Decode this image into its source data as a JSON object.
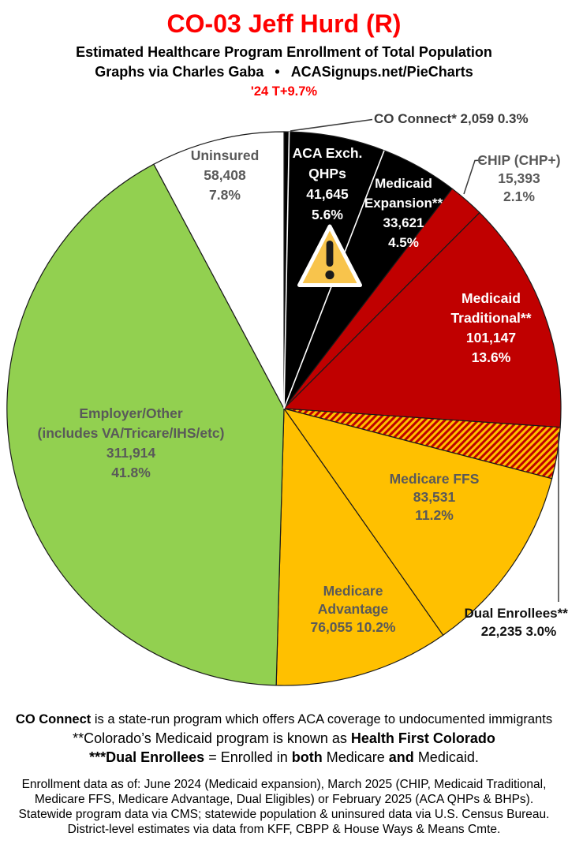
{
  "header": {
    "title": "CO-03 Jeff Hurd (R)",
    "title_color": "#FE0000",
    "subtitle": "Estimated Healthcare Program Enrollment of Total Population",
    "credit": "Graphs via Charles Gaba",
    "bullet": "•",
    "site": "ACASignups.net/PieCharts",
    "trend": "'24 T+9.7%",
    "trend_color": "#FE0000"
  },
  "chart_data": {
    "type": "pie",
    "title": "CO-03 Jeff Hurd (R) — Estimated Healthcare Program Enrollment of Total Population",
    "start_at_12_oclock_clockwise": true,
    "slice_border_color": "#1a1a1a",
    "divider_highlight_color": "#ffffff",
    "hatch": {
      "base": "#FFC000",
      "stripe": "#C00000"
    },
    "icon": {
      "name": "warning-triangle",
      "fill": "#F8C44C",
      "mark_color": "#1b1b1b",
      "border_color": "#ffffff"
    },
    "segments": [
      {
        "id": "co-connect",
        "label": "CO Connect*",
        "value": 2059,
        "pct": 0.3,
        "fill": "#000000",
        "label_color": "#3b3b3b",
        "lines": [
          "CO Connect* 2,059 0.3%"
        ]
      },
      {
        "id": "aca-exchange-qhps",
        "label": "ACA Exch. QHPs",
        "value": 41645,
        "pct": 5.6,
        "fill": "#000000",
        "label_color": "#ffffff",
        "white_start_divider": true,
        "lines": [
          "ACA Exch.",
          "QHPs",
          "41,645",
          "5.6%"
        ]
      },
      {
        "id": "medicaid-expansion",
        "label": "Medicaid Expansion**",
        "value": 33621,
        "pct": 4.5,
        "fill": "#000000",
        "label_color": "#ffffff",
        "white_start_divider": true,
        "lines": [
          "Medicaid",
          "Expansion**",
          "33,621",
          "4.5%"
        ]
      },
      {
        "id": "chip",
        "label": "CHIP (CHP+)",
        "value": 15393,
        "pct": 2.1,
        "fill": "#C00000",
        "label_color": "#595959",
        "lines": [
          "CHIP (CHP+)",
          "15,393",
          "2.1%"
        ]
      },
      {
        "id": "medicaid-traditional",
        "label": "Medicaid Traditional**",
        "value": 101147,
        "pct": 13.6,
        "fill": "#C00000",
        "label_color": "#ffffff",
        "lines": [
          "Medicaid",
          "Traditional**",
          "101,147",
          "13.6%"
        ]
      },
      {
        "id": "dual-enrollees",
        "label": "Dual Enrollees***",
        "value": 22235,
        "pct": 3.0,
        "fill": "hatch",
        "label_color": "#111111",
        "lines": [
          "Dual Enrollees***",
          "22,235 3.0%"
        ]
      },
      {
        "id": "medicare-ffs",
        "label": "Medicare FFS",
        "value": 83531,
        "pct": 11.2,
        "fill": "#FFC000",
        "label_color": "#595959",
        "lines": [
          "Medicare FFS",
          "83,531",
          "11.2%"
        ]
      },
      {
        "id": "medicare-advantage",
        "label": "Medicare Advantage",
        "value": 76055,
        "pct": 10.2,
        "fill": "#FFC000",
        "label_color": "#595959",
        "lines": [
          "Medicare",
          "Advantage",
          "76,055 10.2%"
        ]
      },
      {
        "id": "employer-other",
        "label": "Employer/Other (includes VA/Tricare/IHS/etc)",
        "value": 311914,
        "pct": 41.8,
        "fill": "#92D050",
        "label_color": "#595959",
        "lines": [
          "Employer/Other",
          "(includes VA/Tricare/IHS/etc)",
          "311,914",
          "41.8%"
        ]
      },
      {
        "id": "uninsured",
        "label": "Uninsured",
        "value": 58408,
        "pct": 7.8,
        "fill": "#ffffff",
        "label_color": "#595959",
        "lines": [
          "Uninsured",
          "58,408",
          "7.8%"
        ]
      }
    ]
  },
  "notes": {
    "line1_bold": "CO Connect",
    "line1_rest": " is a state-run program which offers ACA coverage to undocumented immigrants",
    "line2_pre": "**Colorado’s Medicaid program is known as ",
    "line2_bold": "Health First Colorado",
    "line3_bold1": "***Dual Enrollees",
    "line3_mid1": " = Enrolled in ",
    "line3_bold2": "both",
    "line3_mid2": " Medicare ",
    "line3_bold3": "and",
    "line3_end": " Medicaid."
  },
  "footer_lines": [
    "Enrollment data as of: June 2024 (Medicaid expansion), March 2025 (CHIP, Medicaid Traditional,",
    "Medicare FFS, Medicare Advantage, Dual Eligibles) or February 2025 (ACA QHPs & BHPs).",
    "Statewide program data via CMS; statewide population & uninsured data via U.S. Census Bureau.",
    "District-level estimates via data from KFF, CBPP & House Ways & Means Cmte."
  ]
}
